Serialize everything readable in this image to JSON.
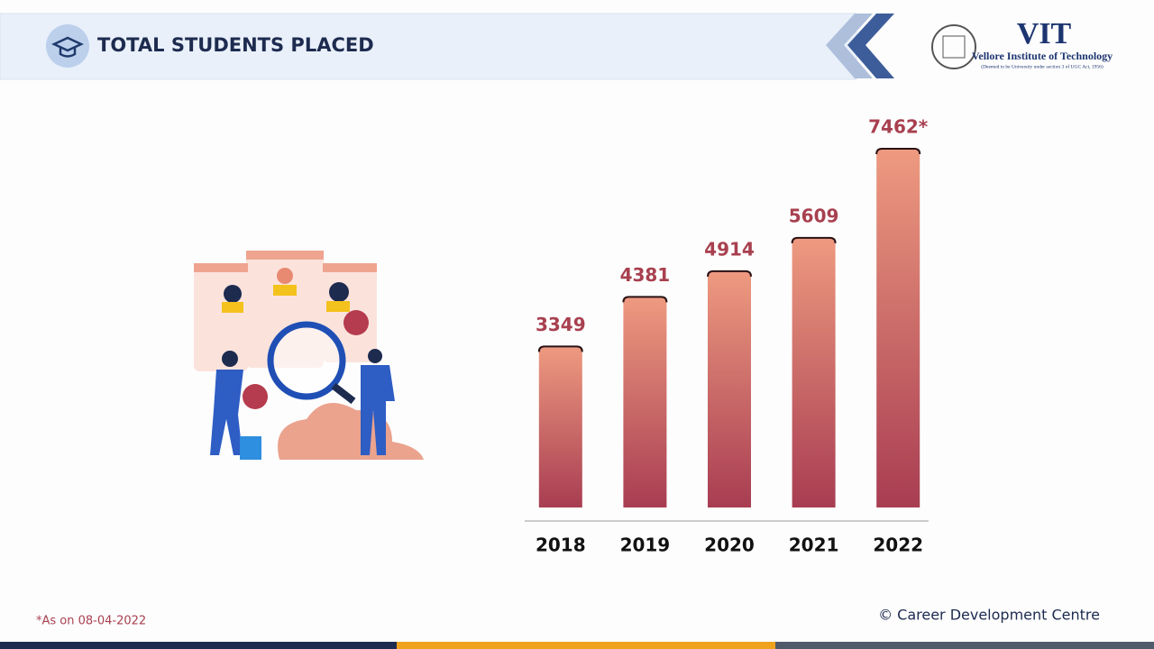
{
  "header": {
    "title": "TOTAL STUDENTS PLACED"
  },
  "logo": {
    "name": "VIT",
    "full_name": "Vellore Institute of Technology",
    "note": "(Deemed to be University under section 3 of UGC Act, 1956)"
  },
  "chart_data": {
    "type": "bar",
    "categories": [
      "2018",
      "2019",
      "2020",
      "2021",
      "2022"
    ],
    "values": [
      3349,
      4381,
      4914,
      5609,
      7462
    ],
    "value_labels": [
      "3349",
      "4381",
      "4914",
      "5609",
      "7462*"
    ],
    "color": "#b84a58"
  },
  "footnote": "*As on 08-04-2022",
  "credit": "© Career Development Centre"
}
